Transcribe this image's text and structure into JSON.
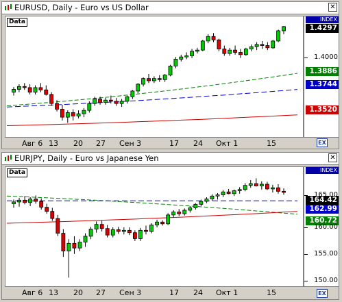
{
  "panels": [
    {
      "title": "EURUSD, Daily - Euro vs US Dollar",
      "data_tag": "Data",
      "index_label": "INDEX",
      "current_price": "1.4297",
      "price_labels": [
        "1.4000",
        "1.3886",
        "1.3744",
        "1.3520"
      ],
      "price_label_colors": [
        "#ffffff",
        "#008000",
        "#0000cc",
        "#cc0000"
      ],
      "date_labels": [
        "Авг 6",
        "13",
        "20",
        "27",
        "Сен 3",
        "17",
        "24",
        "Окт 1",
        "15"
      ],
      "corner_button": "EX"
    },
    {
      "title": "EURJPY, Daily - Euro vs Japanese Yen",
      "data_tag": "Data",
      "index_label": "INDEX",
      "current_price": "164.42",
      "price_labels": [
        "165.00",
        "162.99",
        "160.72",
        "160.00",
        "155.00",
        "150.00"
      ],
      "price_label_colors": [
        "#ffffff",
        "#0000cc",
        "#008000",
        "#ffffff",
        "#ffffff",
        "#ffffff"
      ],
      "date_labels": [
        "Авг 6",
        "13",
        "20",
        "27",
        "Сен 3",
        "17",
        "24",
        "Окт 1",
        "15"
      ],
      "corner_button": "EX"
    }
  ],
  "chart_data": [
    {
      "type": "candlestick",
      "title": "EURUSD, Daily - Euro vs US Dollar",
      "y_range": [
        1.335,
        1.435
      ],
      "ohlc": [
        [
          1.372,
          1.3765,
          1.369,
          1.3745
        ],
        [
          1.3745,
          1.379,
          1.372,
          1.377
        ],
        [
          1.377,
          1.38,
          1.374,
          1.376
        ],
        [
          1.376,
          1.379,
          1.37,
          1.372
        ],
        [
          1.372,
          1.378,
          1.37,
          1.376
        ],
        [
          1.376,
          1.38,
          1.372,
          1.374
        ],
        [
          1.374,
          1.378,
          1.369,
          1.37
        ],
        [
          1.37,
          1.372,
          1.36,
          1.362
        ],
        [
          1.362,
          1.365,
          1.355,
          1.357
        ],
        [
          1.357,
          1.361,
          1.347,
          1.35
        ],
        [
          1.35,
          1.356,
          1.345,
          1.354
        ],
        [
          1.354,
          1.357,
          1.347,
          1.351
        ],
        [
          1.351,
          1.356,
          1.349,
          1.353
        ],
        [
          1.353,
          1.358,
          1.35,
          1.356
        ],
        [
          1.356,
          1.364,
          1.354,
          1.362
        ],
        [
          1.362,
          1.368,
          1.36,
          1.366
        ],
        [
          1.366,
          1.368,
          1.361,
          1.363
        ],
        [
          1.363,
          1.367,
          1.361,
          1.365
        ],
        [
          1.365,
          1.369,
          1.362,
          1.364
        ],
        [
          1.364,
          1.367,
          1.36,
          1.362
        ],
        [
          1.362,
          1.366,
          1.359,
          1.364
        ],
        [
          1.364,
          1.369,
          1.362,
          1.368
        ],
        [
          1.368,
          1.374,
          1.366,
          1.373
        ],
        [
          1.373,
          1.38,
          1.371,
          1.379
        ],
        [
          1.379,
          1.385,
          1.377,
          1.384
        ],
        [
          1.384,
          1.388,
          1.38,
          1.382
        ],
        [
          1.382,
          1.386,
          1.38,
          1.384
        ],
        [
          1.384,
          1.387,
          1.381,
          1.383
        ],
        [
          1.383,
          1.388,
          1.381,
          1.387
        ],
        [
          1.387,
          1.396,
          1.386,
          1.395
        ],
        [
          1.395,
          1.403,
          1.393,
          1.401
        ],
        [
          1.401,
          1.405,
          1.399,
          1.403
        ],
        [
          1.403,
          1.407,
          1.401,
          1.404
        ],
        [
          1.404,
          1.41,
          1.402,
          1.408
        ],
        [
          1.408,
          1.411,
          1.406,
          1.409
        ],
        [
          1.409,
          1.418,
          1.408,
          1.417
        ],
        [
          1.417,
          1.423,
          1.415,
          1.421
        ],
        [
          1.421,
          1.424,
          1.416,
          1.418
        ],
        [
          1.418,
          1.419,
          1.408,
          1.41
        ],
        [
          1.41,
          1.413,
          1.404,
          1.406
        ],
        [
          1.406,
          1.411,
          1.404,
          1.409
        ],
        [
          1.409,
          1.413,
          1.405,
          1.407
        ],
        [
          1.407,
          1.41,
          1.402,
          1.405
        ],
        [
          1.405,
          1.411,
          1.404,
          1.41
        ],
        [
          1.41,
          1.414,
          1.408,
          1.412
        ],
        [
          1.412,
          1.416,
          1.409,
          1.414
        ],
        [
          1.414,
          1.417,
          1.41,
          1.413
        ],
        [
          1.413,
          1.416,
          1.409,
          1.411
        ],
        [
          1.411,
          1.418,
          1.41,
          1.417
        ],
        [
          1.417,
          1.427,
          1.416,
          1.426
        ],
        [
          1.426,
          1.43,
          1.423,
          1.4297
        ]
      ],
      "ma": [
        {
          "color": "#008000",
          "values": [
            1.36,
            1.3886
          ]
        },
        {
          "color": "#0000cc",
          "values": [
            1.359,
            1.3744
          ]
        },
        {
          "color": "#cc0000",
          "values": [
            1.3425,
            1.352
          ]
        }
      ]
    },
    {
      "type": "candlestick",
      "title": "EURJPY, Daily - Euro vs Japanese Yen",
      "y_range": [
        149.0,
        168.0
      ],
      "ohlc": [
        [
          162.5,
          163.2,
          161.8,
          162.8
        ],
        [
          162.8,
          163.5,
          162.0,
          163.1
        ],
        [
          163.1,
          163.8,
          162.4,
          162.7
        ],
        [
          162.7,
          163.6,
          162.1,
          163.3
        ],
        [
          163.3,
          163.9,
          162.5,
          162.9
        ],
        [
          162.9,
          163.4,
          161.5,
          161.9
        ],
        [
          161.9,
          162.5,
          160.8,
          161.2
        ],
        [
          161.2,
          161.8,
          159.6,
          160.0
        ],
        [
          160.0,
          160.6,
          157.0,
          157.5
        ],
        [
          157.5,
          158.2,
          153.5,
          154.5
        ],
        [
          154.5,
          156.5,
          150.0,
          155.8
        ],
        [
          155.8,
          157.0,
          154.0,
          155.0
        ],
        [
          155.0,
          156.5,
          154.5,
          156.0
        ],
        [
          156.0,
          157.5,
          155.2,
          157.0
        ],
        [
          157.0,
          158.6,
          156.5,
          158.2
        ],
        [
          158.2,
          159.5,
          157.6,
          159.0
        ],
        [
          159.0,
          159.6,
          157.8,
          158.3
        ],
        [
          158.3,
          158.9,
          156.8,
          157.2
        ],
        [
          157.2,
          158.5,
          156.8,
          158.1
        ],
        [
          158.1,
          158.6,
          157.4,
          157.8
        ],
        [
          157.8,
          158.5,
          157.3,
          158.0
        ],
        [
          158.0,
          158.5,
          157.2,
          157.6
        ],
        [
          157.6,
          158.0,
          156.2,
          156.6
        ],
        [
          156.6,
          158.4,
          156.2,
          158.0
        ],
        [
          158.0,
          158.8,
          157.3,
          157.8
        ],
        [
          157.8,
          159.2,
          157.5,
          158.9
        ],
        [
          158.9,
          159.8,
          158.5,
          159.4
        ],
        [
          159.4,
          159.7,
          158.8,
          159.1
        ],
        [
          159.1,
          160.9,
          158.9,
          160.6
        ],
        [
          160.6,
          161.4,
          160.2,
          161.1
        ],
        [
          161.1,
          161.6,
          160.4,
          160.8
        ],
        [
          160.8,
          161.7,
          160.5,
          161.4
        ],
        [
          161.4,
          162.1,
          161.0,
          161.8
        ],
        [
          161.8,
          162.6,
          161.5,
          162.4
        ],
        [
          162.4,
          163.2,
          162.1,
          162.9
        ],
        [
          162.9,
          163.6,
          162.6,
          163.3
        ],
        [
          163.3,
          164.1,
          163.0,
          163.8
        ],
        [
          163.8,
          164.3,
          163.2,
          164.0
        ],
        [
          164.0,
          164.8,
          163.6,
          164.5
        ],
        [
          164.5,
          165.0,
          164.1,
          164.2
        ],
        [
          164.2,
          164.9,
          163.8,
          164.7
        ],
        [
          164.7,
          165.3,
          164.2,
          164.9
        ],
        [
          164.9,
          166.0,
          164.6,
          165.6
        ],
        [
          165.6,
          166.5,
          165.2,
          165.9
        ],
        [
          165.9,
          166.8,
          165.4,
          165.5
        ],
        [
          165.5,
          166.3,
          164.9,
          165.8
        ],
        [
          165.8,
          166.2,
          164.8,
          165.0
        ],
        [
          165.0,
          165.7,
          164.4,
          165.2
        ],
        [
          165.2,
          165.8,
          164.2,
          164.6
        ],
        [
          164.6,
          165.1,
          164.0,
          164.42
        ]
      ],
      "ma": [
        {
          "color": "#008000",
          "values": [
            163.8,
            160.72
          ]
        },
        {
          "color": "#0000cc",
          "values": [
            163.0,
            162.99
          ]
        },
        {
          "color": "#cc0000",
          "values": [
            159.2,
            161.2
          ]
        }
      ]
    }
  ]
}
